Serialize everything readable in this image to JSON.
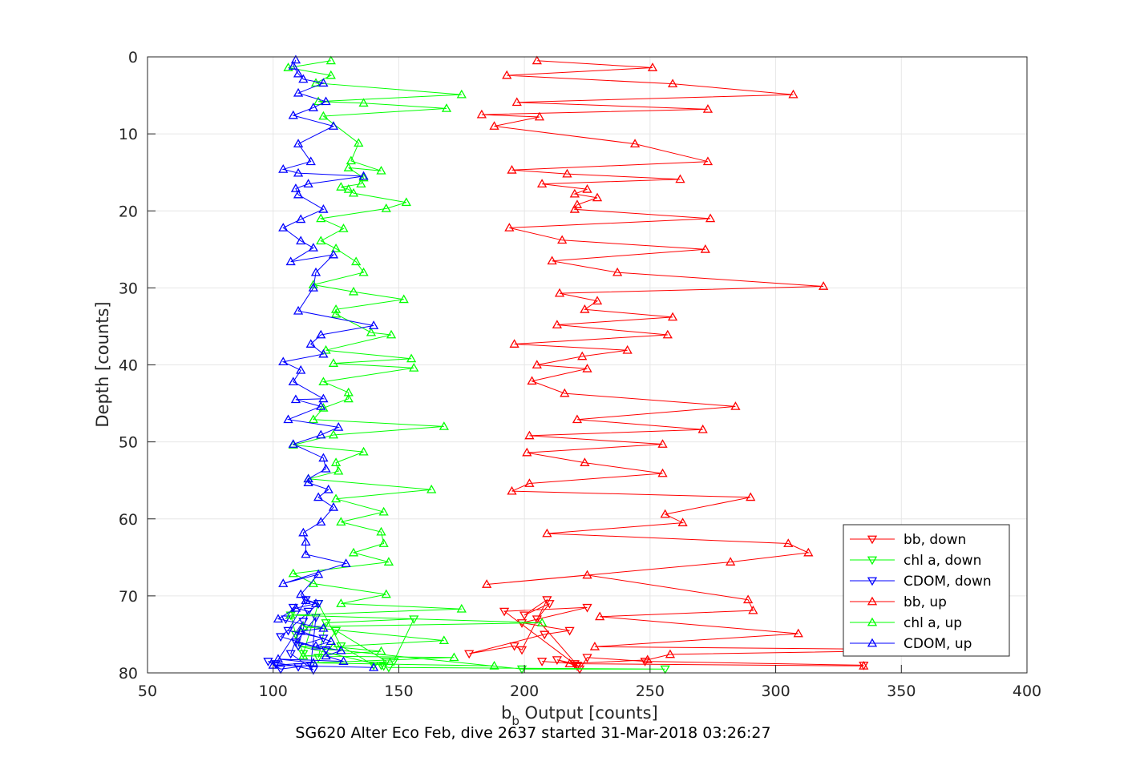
{
  "chart_data": {
    "type": "line",
    "xlabel_main": "b",
    "xlabel_sub": "b",
    "xlabel_rest": " Output [counts]",
    "ylabel": "Depth [counts]",
    "caption": "SG620 Alter Eco Feb, dive 2637 started 31-Mar-2018 03:26:27",
    "xlim": [
      50,
      400
    ],
    "ylim": [
      0,
      80
    ],
    "y_reversed": true,
    "xticks": [
      50,
      100,
      150,
      200,
      250,
      300,
      350,
      400
    ],
    "yticks": [
      0,
      10,
      20,
      30,
      40,
      50,
      60,
      70,
      80
    ],
    "grid": true,
    "legend_position": "bottom-right",
    "series": [
      {
        "name": "bb, down",
        "color": "#ff0000",
        "marker": "triangle-down",
        "x": [
          207,
          220,
          213,
          221,
          192,
          225,
          199,
          218,
          208,
          178,
          196,
          199,
          209,
          200,
          210,
          205,
          221,
          222,
          225,
          248,
          335
        ],
        "y": [
          78.5,
          78.8,
          78.3,
          79.1,
          72,
          71.5,
          73.5,
          74.5,
          75,
          77.5,
          76.5,
          77,
          70.5,
          72.5,
          71,
          73,
          79,
          79.5,
          78,
          78.5,
          79
        ]
      },
      {
        "name": "chl a, down",
        "color": "#00ff00",
        "marker": "triangle-down",
        "x": [
          107,
          109,
          112,
          118,
          127,
          140,
          148,
          156,
          121,
          118,
          125,
          145,
          143,
          110,
          199,
          256,
          146,
          144
        ],
        "y": [
          72.5,
          75,
          77.5,
          71,
          76.5,
          79,
          78.5,
          73,
          73.5,
          78,
          74.5,
          78.5,
          79,
          76.5,
          79.5,
          79.5,
          79.3,
          79.1
        ],
        "order": "scatter"
      },
      {
        "name": "CDOM, down",
        "color": "#0000ff",
        "marker": "triangle-down",
        "x": [
          105,
          108,
          114,
          110,
          120,
          106,
          113,
          118,
          103,
          121,
          109,
          117,
          115,
          103,
          98,
          110,
          116,
          107,
          112,
          101
        ],
        "y": [
          73,
          71.5,
          72,
          76.5,
          75.5,
          74.5,
          70.5,
          71,
          75.3,
          77,
          76,
          72.8,
          79,
          79.5,
          78.5,
          79.2,
          79.6,
          77.5,
          73.3,
          78.8
        ],
        "order": "scatter"
      },
      {
        "name": "bb, up",
        "color": "#ff0000",
        "marker": "triangle-up",
        "x": [
          205,
          251,
          193,
          259,
          307,
          197,
          273,
          183,
          206,
          188,
          244,
          273,
          195,
          217,
          262,
          207,
          225,
          220,
          229,
          221,
          220,
          274,
          194,
          215,
          272,
          211,
          237,
          319,
          214,
          229,
          224,
          259,
          213,
          257,
          196,
          241,
          223,
          205,
          225,
          203,
          216,
          284,
          221,
          271,
          202,
          255,
          201,
          224,
          255,
          202,
          195,
          290,
          256,
          263,
          209,
          305,
          313,
          282,
          185,
          225,
          289,
          291,
          230,
          309,
          228,
          370
        ],
        "y": [
          0.5,
          1.4,
          2.4,
          3.5,
          4.9,
          5.9,
          6.8,
          7.5,
          7.8,
          9.0,
          11.3,
          13.6,
          14.7,
          15.2,
          15.9,
          16.5,
          17.2,
          17.8,
          18.3,
          19.2,
          19.8,
          21.0,
          22.2,
          23.8,
          25.0,
          26.5,
          28.0,
          29.8,
          30.7,
          31.7,
          32.8,
          33.8,
          34.8,
          36.1,
          37.3,
          38.1,
          38.9,
          40.0,
          40.5,
          42.1,
          43.7,
          45.4,
          47.1,
          48.4,
          49.2,
          50.3,
          51.4,
          52.7,
          54.1,
          55.4,
          56.4,
          57.2,
          59.4,
          60.5,
          61.9,
          63.2,
          64.4,
          65.6,
          68.5,
          67.3,
          70.5,
          71.9,
          72.7,
          74.9,
          76.6,
          77.0
        ],
        "tail": {
          "x": [
            258,
            249,
            218,
            335
          ],
          "y": [
            77.6,
            78.3,
            78.8,
            79.1
          ]
        }
      },
      {
        "name": "chl a, up",
        "color": "#00ff00",
        "marker": "triangle-up",
        "x": [
          123,
          106,
          123,
          117,
          175,
          118,
          136,
          169,
          120,
          134,
          131,
          143,
          130,
          136,
          135,
          127,
          130,
          132,
          153,
          145,
          119,
          128,
          119,
          125,
          133,
          136,
          116,
          132,
          152,
          125,
          125,
          139,
          147,
          121,
          155,
          124,
          156,
          120,
          130,
          130,
          120,
          116,
          168,
          124,
          108,
          136,
          125,
          126,
          114,
          163,
          125,
          144,
          127,
          143,
          144,
          132,
          146,
          108,
          116,
          145,
          127,
          175,
          107,
          207,
          112,
          168,
          124,
          143,
          112,
          172,
          116,
          188
        ],
        "y": [
          0.5,
          1.4,
          2.4,
          3.4,
          4.9,
          5.8,
          6.0,
          6.7,
          7.7,
          11.2,
          13.5,
          14.8,
          14.4,
          15.7,
          16.5,
          16.9,
          17.2,
          17.7,
          18.9,
          19.7,
          21.0,
          22.3,
          23.9,
          24.9,
          26.6,
          28.0,
          29.6,
          30.5,
          31.5,
          32.8,
          33.4,
          35.8,
          36.1,
          38.1,
          39.2,
          39.8,
          40.4,
          42.2,
          43.6,
          44.4,
          45.6,
          47.1,
          48.0,
          49.1,
          50.4,
          51.3,
          52.7,
          53.8,
          54.8,
          56.2,
          57.4,
          59.1,
          60.4,
          61.7,
          63.2,
          64.4,
          65.6,
          67.1,
          68.4,
          69.8,
          71.0,
          71.7,
          72.5,
          73.5,
          74.0,
          75.8,
          76.6,
          77.2,
          77.8,
          78.0,
          78.7,
          79.1
        ]
      },
      {
        "name": "CDOM, up",
        "color": "#0000ff",
        "marker": "triangle-up",
        "x": [
          109,
          108,
          110,
          112,
          120,
          110,
          121,
          116,
          108,
          124,
          110,
          115,
          104,
          110,
          136,
          114,
          109,
          110,
          120,
          111,
          104,
          111,
          116,
          107,
          124,
          117,
          116,
          110,
          140,
          119,
          115,
          120,
          104,
          111,
          108,
          120,
          109,
          119,
          106,
          126,
          119,
          108,
          120,
          121,
          114,
          114,
          122,
          118,
          124,
          119,
          112,
          113,
          113,
          129,
          104,
          118,
          111,
          113,
          117,
          109,
          102,
          120,
          111,
          123,
          117,
          127,
          121,
          128,
          102,
          116,
          100,
          140
        ],
        "y": [
          0.4,
          1.2,
          2.2,
          2.9,
          3.4,
          4.7,
          5.8,
          6.6,
          7.6,
          9.0,
          11.3,
          13.6,
          14.6,
          15.1,
          15.5,
          16.5,
          17.1,
          17.9,
          19.8,
          21.1,
          22.2,
          23.9,
          24.8,
          26.6,
          25.7,
          28.0,
          30.0,
          33.0,
          34.9,
          36.1,
          37.3,
          38.6,
          39.6,
          40.7,
          42.2,
          44.4,
          44.5,
          45.4,
          47.1,
          48.1,
          49.1,
          50.3,
          52.1,
          53.5,
          54.8,
          55.3,
          56.2,
          57.2,
          58.5,
          60.4,
          61.8,
          63.0,
          64.6,
          65.8,
          68.4,
          67.2,
          69.8,
          70.6,
          71.0,
          71.6,
          73.0,
          74.2,
          74.6,
          75.9,
          76.5,
          77.1,
          77.8,
          78.5,
          78.2,
          78.7,
          79.0,
          79.3
        ]
      }
    ]
  }
}
